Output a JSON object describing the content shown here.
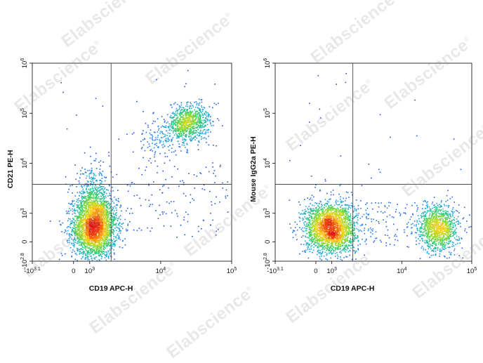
{
  "watermark": {
    "text": "Elabscience",
    "mark": "®"
  },
  "chart_data": [
    {
      "type": "scatter",
      "title": "",
      "xlabel": "CD19 APC-H",
      "ylabel": "CD21 PE-H",
      "x_scale": "logicle",
      "y_scale": "logicle",
      "xlim": [
        "-10^3.1",
        "10^5"
      ],
      "ylim": [
        "-10^2.8",
        "10^6"
      ],
      "x_ticks": [
        {
          "base": "-10",
          "exp": "3.1"
        },
        {
          "base": "0",
          "exp": ""
        },
        {
          "base": "10",
          "exp": "3"
        },
        {
          "base": "10",
          "exp": "4"
        },
        {
          "base": "10",
          "exp": "5"
        }
      ],
      "y_ticks": [
        {
          "base": "-10",
          "exp": "2.8"
        },
        {
          "base": "0",
          "exp": ""
        },
        {
          "base": "10",
          "exp": "3"
        },
        {
          "base": "10",
          "exp": "4"
        },
        {
          "base": "10",
          "exp": "5"
        },
        {
          "base": "10",
          "exp": "6"
        }
      ],
      "x_tick_values": [
        "-1259",
        "0",
        "1000",
        "10000",
        "100000"
      ],
      "y_tick_values": [
        "-631",
        "0",
        "1000",
        "10000",
        "100000",
        "1000000"
      ],
      "quadrant_gate": {
        "x": 2000,
        "y": 3800
      },
      "color_scale": "density (blue low → green → yellow → red high)",
      "populations": [
        {
          "name": "CD19+CD21+",
          "x_center": 18000,
          "y_center": 30000,
          "relative_density": "medium"
        },
        {
          "name": "CD19-CD21-",
          "x_center": 450,
          "y_center": 300,
          "relative_density": "high"
        }
      ]
    },
    {
      "type": "scatter",
      "title": "",
      "xlabel": "CD19 APC-H",
      "ylabel": "Mouse IgG2a PE-H",
      "x_scale": "logicle",
      "y_scale": "logicle",
      "xlim": [
        "-10^3.1",
        "10^5"
      ],
      "ylim": [
        "-10^2.8",
        "10^6"
      ],
      "x_ticks": [
        {
          "base": "-10",
          "exp": "3.1"
        },
        {
          "base": "0",
          "exp": ""
        },
        {
          "base": "10",
          "exp": "3"
        },
        {
          "base": "10",
          "exp": "4"
        },
        {
          "base": "10",
          "exp": "5"
        }
      ],
      "y_ticks": [
        {
          "base": "-10",
          "exp": "2.8"
        },
        {
          "base": "0",
          "exp": ""
        },
        {
          "base": "10",
          "exp": "3"
        },
        {
          "base": "10",
          "exp": "4"
        },
        {
          "base": "10",
          "exp": "5"
        },
        {
          "base": "10",
          "exp": "6"
        }
      ],
      "x_tick_values": [
        "-1259",
        "0",
        "1000",
        "10000",
        "100000"
      ],
      "y_tick_values": [
        "-631",
        "0",
        "1000",
        "10000",
        "100000",
        "1000000"
      ],
      "quadrant_gate": {
        "x": 2000,
        "y": 3800
      },
      "color_scale": "density (blue low → green → yellow → red high)",
      "populations": [
        {
          "name": "CD19-",
          "x_center": 300,
          "y_center": 250,
          "relative_density": "high"
        },
        {
          "name": "CD19+",
          "x_center": 18000,
          "y_center": 200,
          "relative_density": "medium"
        }
      ]
    }
  ]
}
